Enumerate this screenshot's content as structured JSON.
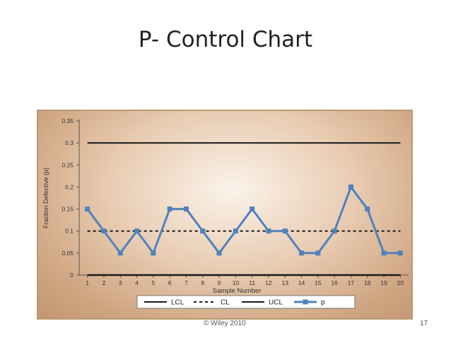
{
  "slide": {
    "title": "P- Control Chart",
    "footer": "© Wiley 2010",
    "page_number": "17"
  },
  "chart_data": {
    "type": "line",
    "title": "",
    "xlabel": "Sample Number",
    "ylabel": "Fraction Defective (p)",
    "x": [
      1,
      2,
      3,
      4,
      5,
      6,
      7,
      8,
      9,
      10,
      11,
      12,
      13,
      14,
      15,
      16,
      17,
      18,
      19,
      20
    ],
    "xlim": [
      0.5,
      20.5
    ],
    "ylim": [
      0,
      0.35
    ],
    "yticks": [
      0,
      0.05,
      0.1,
      0.15,
      0.2,
      0.25,
      0.3,
      0.35
    ],
    "ytick_labels": [
      "0",
      "0.05",
      "0.1",
      "0.15",
      "0.2",
      "0.25",
      "0.3",
      "0.35"
    ],
    "grid": false,
    "legend_position": "bottom",
    "series": [
      {
        "name": "LCL",
        "style": "solid",
        "color": "#1a1a1a",
        "values": [
          0,
          0,
          0,
          0,
          0,
          0,
          0,
          0,
          0,
          0,
          0,
          0,
          0,
          0,
          0,
          0,
          0,
          0,
          0,
          0
        ]
      },
      {
        "name": "CL",
        "style": "dashed",
        "color": "#1a1a1a",
        "values": [
          0.1,
          0.1,
          0.1,
          0.1,
          0.1,
          0.1,
          0.1,
          0.1,
          0.1,
          0.1,
          0.1,
          0.1,
          0.1,
          0.1,
          0.1,
          0.1,
          0.1,
          0.1,
          0.1,
          0.1
        ]
      },
      {
        "name": "UCL",
        "style": "solid",
        "color": "#1a1a1a",
        "values": [
          0.3,
          0.3,
          0.3,
          0.3,
          0.3,
          0.3,
          0.3,
          0.3,
          0.3,
          0.3,
          0.3,
          0.3,
          0.3,
          0.3,
          0.3,
          0.3,
          0.3,
          0.3,
          0.3,
          0.3
        ]
      },
      {
        "name": "p",
        "style": "line-markers",
        "color": "#4f81bd",
        "values": [
          0.15,
          0.1,
          0.05,
          0.1,
          0.05,
          0.15,
          0.15,
          0.1,
          0.05,
          0.1,
          0.15,
          0.1,
          0.1,
          0.05,
          0.05,
          0.1,
          0.2,
          0.15,
          0.05,
          0.05
        ]
      }
    ]
  }
}
